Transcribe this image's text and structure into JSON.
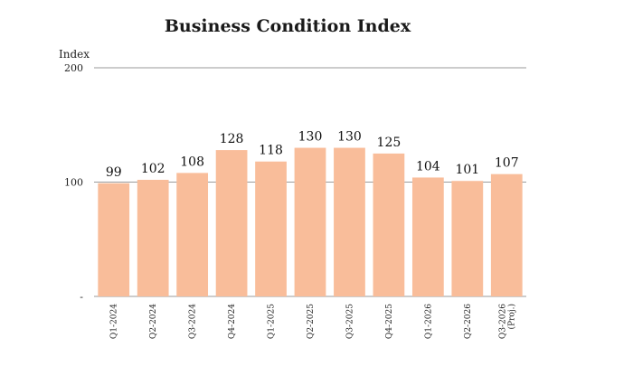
{
  "chart_data": {
    "type": "bar",
    "title": "Business Condition Index",
    "xlabel": "",
    "ylabel": "Index",
    "ylim": [
      0,
      200
    ],
    "yticks": [
      "-",
      "100",
      "200"
    ],
    "grid": true,
    "bar_color": "#f9bd9a",
    "gridline_color": "#9a9a9a",
    "categories": [
      [
        "Q1-2024"
      ],
      [
        "Q2-2024"
      ],
      [
        "Q3-2024"
      ],
      [
        "Q4-2024"
      ],
      [
        "Q1-2025"
      ],
      [
        "Q2-2025"
      ],
      [
        "Q3-2025"
      ],
      [
        "Q4-2025"
      ],
      [
        "Q1-2026"
      ],
      [
        "Q2-2026"
      ],
      [
        "Q3-2026",
        "(Proj.)"
      ]
    ],
    "values": [
      99,
      102,
      108,
      128,
      118,
      130,
      130,
      125,
      104,
      101,
      107
    ]
  }
}
